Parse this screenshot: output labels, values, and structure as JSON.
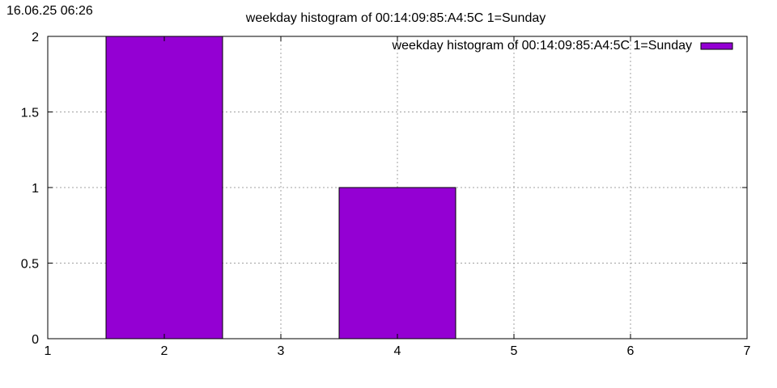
{
  "timestamp": "16.06.25 06:26",
  "chart_data": {
    "type": "bar",
    "title": "weekday histogram of 00:14:09:85:A4:5C 1=Sunday",
    "xlabel": "",
    "ylabel": "",
    "xlim": [
      1,
      7
    ],
    "ylim": [
      0,
      2
    ],
    "x_ticks": [
      1,
      2,
      3,
      4,
      5,
      6,
      7
    ],
    "y_ticks": [
      0,
      0.5,
      1,
      1.5,
      2
    ],
    "x_tick_labels": [
      "1",
      "2",
      "3",
      "4",
      "5",
      "6",
      "7"
    ],
    "y_tick_labels": [
      "0",
      "0.5",
      "1",
      "1.5",
      "2"
    ],
    "grid": true,
    "legend_position": "top-right",
    "series": [
      {
        "name": "weekday histogram of 00:14:09:85:A4:5C 1=Sunday",
        "color": "#9400d3",
        "x": [
          2,
          4
        ],
        "values": [
          2,
          1
        ]
      }
    ]
  }
}
